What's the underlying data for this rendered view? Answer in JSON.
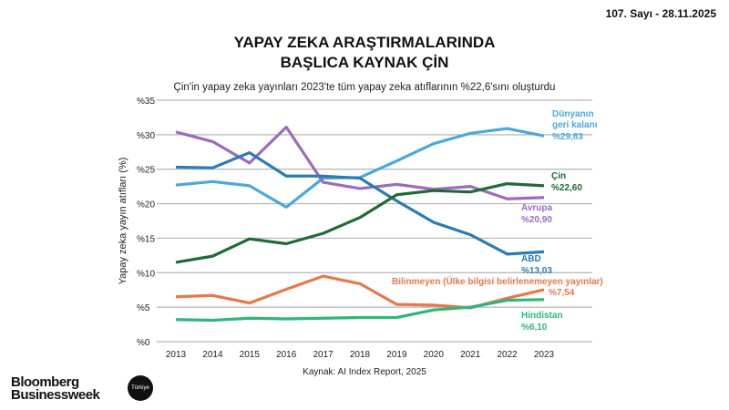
{
  "issue": "107. Sayı - 28.11.2025",
  "brand": {
    "logo_line1": "Bloomberg",
    "logo_line2": "Businessweek",
    "badge": "Türkiye"
  },
  "chart_data": {
    "type": "line",
    "title": "YAPAY ZEKA ARAŞTIRMALARINDA BAŞLICA KAYNAK ÇİN",
    "title_line1": "YAPAY ZEKA ARAŞTIRMALARINDA",
    "title_line2": "BAŞLICA KAYNAK ÇİN",
    "subtitle": "Çin'in yapay zeka yayınları 2023'te tüm yapay zeka atıflarının %22,6'sını oluşturdu",
    "ylabel": "Yapay zeka yayın atıfları (%)",
    "source": "Kaynak: AI Index Report, 2025",
    "x": [
      2013,
      2014,
      2015,
      2016,
      2017,
      2018,
      2019,
      2020,
      2021,
      2022,
      2023
    ],
    "ylim": [
      0,
      35
    ],
    "yticks": [
      "%0",
      "%5",
      "%10",
      "%15",
      "%20",
      "%25",
      "%30",
      "%35"
    ],
    "grid": true,
    "series": [
      {
        "name": "Dünyanın geri kalanı",
        "label_lines": [
          "Dünyanın",
          "geri kalanı"
        ],
        "end_label": "%29,83",
        "color": "#4aa8dc",
        "values": [
          22.7,
          23.2,
          22.6,
          19.5,
          23.7,
          23.8,
          26.2,
          28.7,
          30.2,
          30.9,
          29.83
        ]
      },
      {
        "name": "Avrupa",
        "label_lines": [
          "Avrupa"
        ],
        "end_label": "%20,90",
        "color": "#9b6bbf",
        "values": [
          30.4,
          29.0,
          25.9,
          31.1,
          23.1,
          22.2,
          22.8,
          22.1,
          22.5,
          20.7,
          20.9
        ]
      },
      {
        "name": "ABD",
        "label_lines": [
          "ABD"
        ],
        "end_label": "%13,03",
        "color": "#2b7bb5",
        "values": [
          25.3,
          25.2,
          27.4,
          24.0,
          24.0,
          23.7,
          20.4,
          17.3,
          15.5,
          12.7,
          13.03
        ]
      },
      {
        "name": "Çin",
        "label_lines": [
          "Çin"
        ],
        "end_label": "%22,60",
        "color": "#1f6b35",
        "values": [
          11.5,
          12.4,
          14.9,
          14.2,
          15.7,
          18.0,
          21.3,
          21.9,
          21.7,
          22.9,
          22.6
        ]
      },
      {
        "name": "Bilinmeyen (Ülke bilgisi belirlenemeyen yayınlar)",
        "label_lines": [
          "Bilinmeyen (Ülke bilgisi belirlenemeyen yayınlar)"
        ],
        "end_label": "%7,54",
        "color": "#e8774a",
        "values": [
          6.5,
          6.7,
          5.6,
          7.6,
          9.5,
          8.4,
          5.4,
          5.3,
          4.9,
          6.3,
          7.54
        ]
      },
      {
        "name": "Hindistan",
        "label_lines": [
          "Hindistan"
        ],
        "end_label": "%6,10",
        "color": "#2fb67a",
        "values": [
          3.2,
          3.1,
          3.4,
          3.3,
          3.4,
          3.5,
          3.5,
          4.6,
          5.0,
          6.0,
          6.1
        ]
      }
    ]
  }
}
